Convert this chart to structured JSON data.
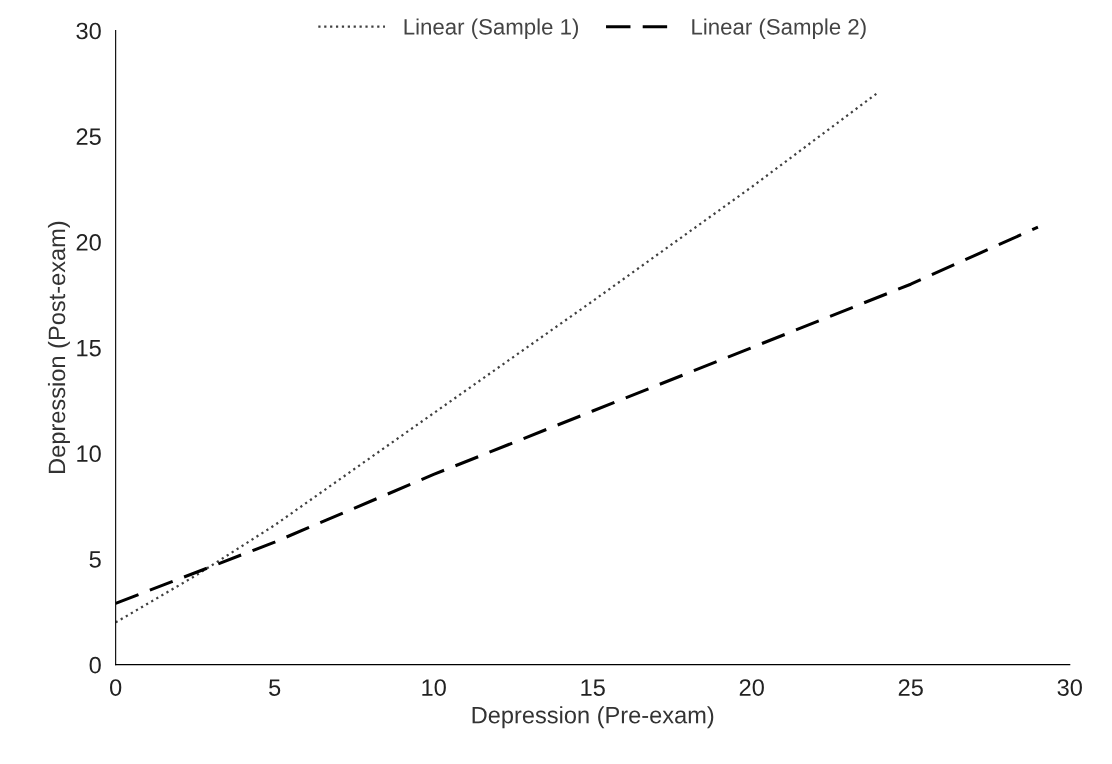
{
  "chart_data": {
    "type": "line",
    "xlabel": "Depression (Pre-exam)",
    "ylabel": "Depression (Post-exam)",
    "xlim": [
      0,
      30
    ],
    "xticks": [
      0,
      5,
      10,
      15,
      20,
      25,
      30
    ],
    "ylim": [
      0,
      30
    ],
    "yticks": [
      0,
      5,
      10,
      15,
      20,
      25,
      30
    ],
    "grid": false,
    "legend": "top",
    "marker": "none",
    "series": [
      {
        "name": "Linear (Sample 1)",
        "color": "#404040",
        "line_style": "dotted",
        "x": [
          0,
          2.5,
          5,
          10,
          15,
          20,
          24
        ],
        "values": [
          2.0,
          4.2,
          6.6,
          11.9,
          17.2,
          22.6,
          27.1
        ]
      },
      {
        "name": "Linear (Sample 2)",
        "color": "#000000",
        "line_style": "dashed",
        "x": [
          0,
          5,
          10,
          15,
          20,
          25,
          29
        ],
        "values": [
          2.9,
          5.8,
          9.0,
          12.0,
          15.0,
          18.0,
          20.7
        ]
      }
    ]
  }
}
